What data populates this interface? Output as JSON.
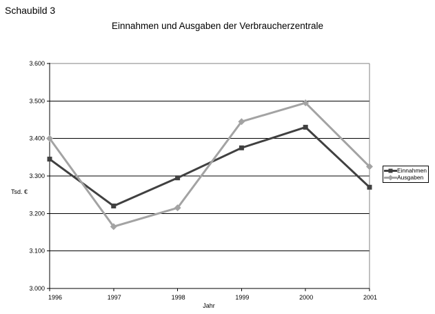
{
  "page": {
    "figure_label": "Schaubild 3"
  },
  "chart_data": {
    "type": "line",
    "title": "Einnahmen und Ausgaben der Verbraucherzentrale",
    "xlabel": "Jahr",
    "ylabel": "Tsd. €",
    "categories": [
      "1996",
      "1997",
      "1998",
      "1999",
      "2000",
      "2001"
    ],
    "series": [
      {
        "name": "Einnahmen",
        "values": [
          3345,
          3220,
          3295,
          3375,
          3430,
          3270
        ],
        "color": "#404040",
        "marker": "square"
      },
      {
        "name": "Ausgaben",
        "values": [
          3400,
          3165,
          3215,
          3445,
          3495,
          3325
        ],
        "color": "#a3a3a3",
        "marker": "diamond"
      }
    ],
    "ylim": [
      3000,
      3600
    ],
    "y_tick_step": 100,
    "y_tick_labels": [
      "3.000",
      "3.100",
      "3.200",
      "3.300",
      "3.400",
      "3.500",
      "3.600"
    ],
    "grid": true,
    "gridline_color": "#000000",
    "plot_border_color": "#808080",
    "legend_position": "right"
  }
}
